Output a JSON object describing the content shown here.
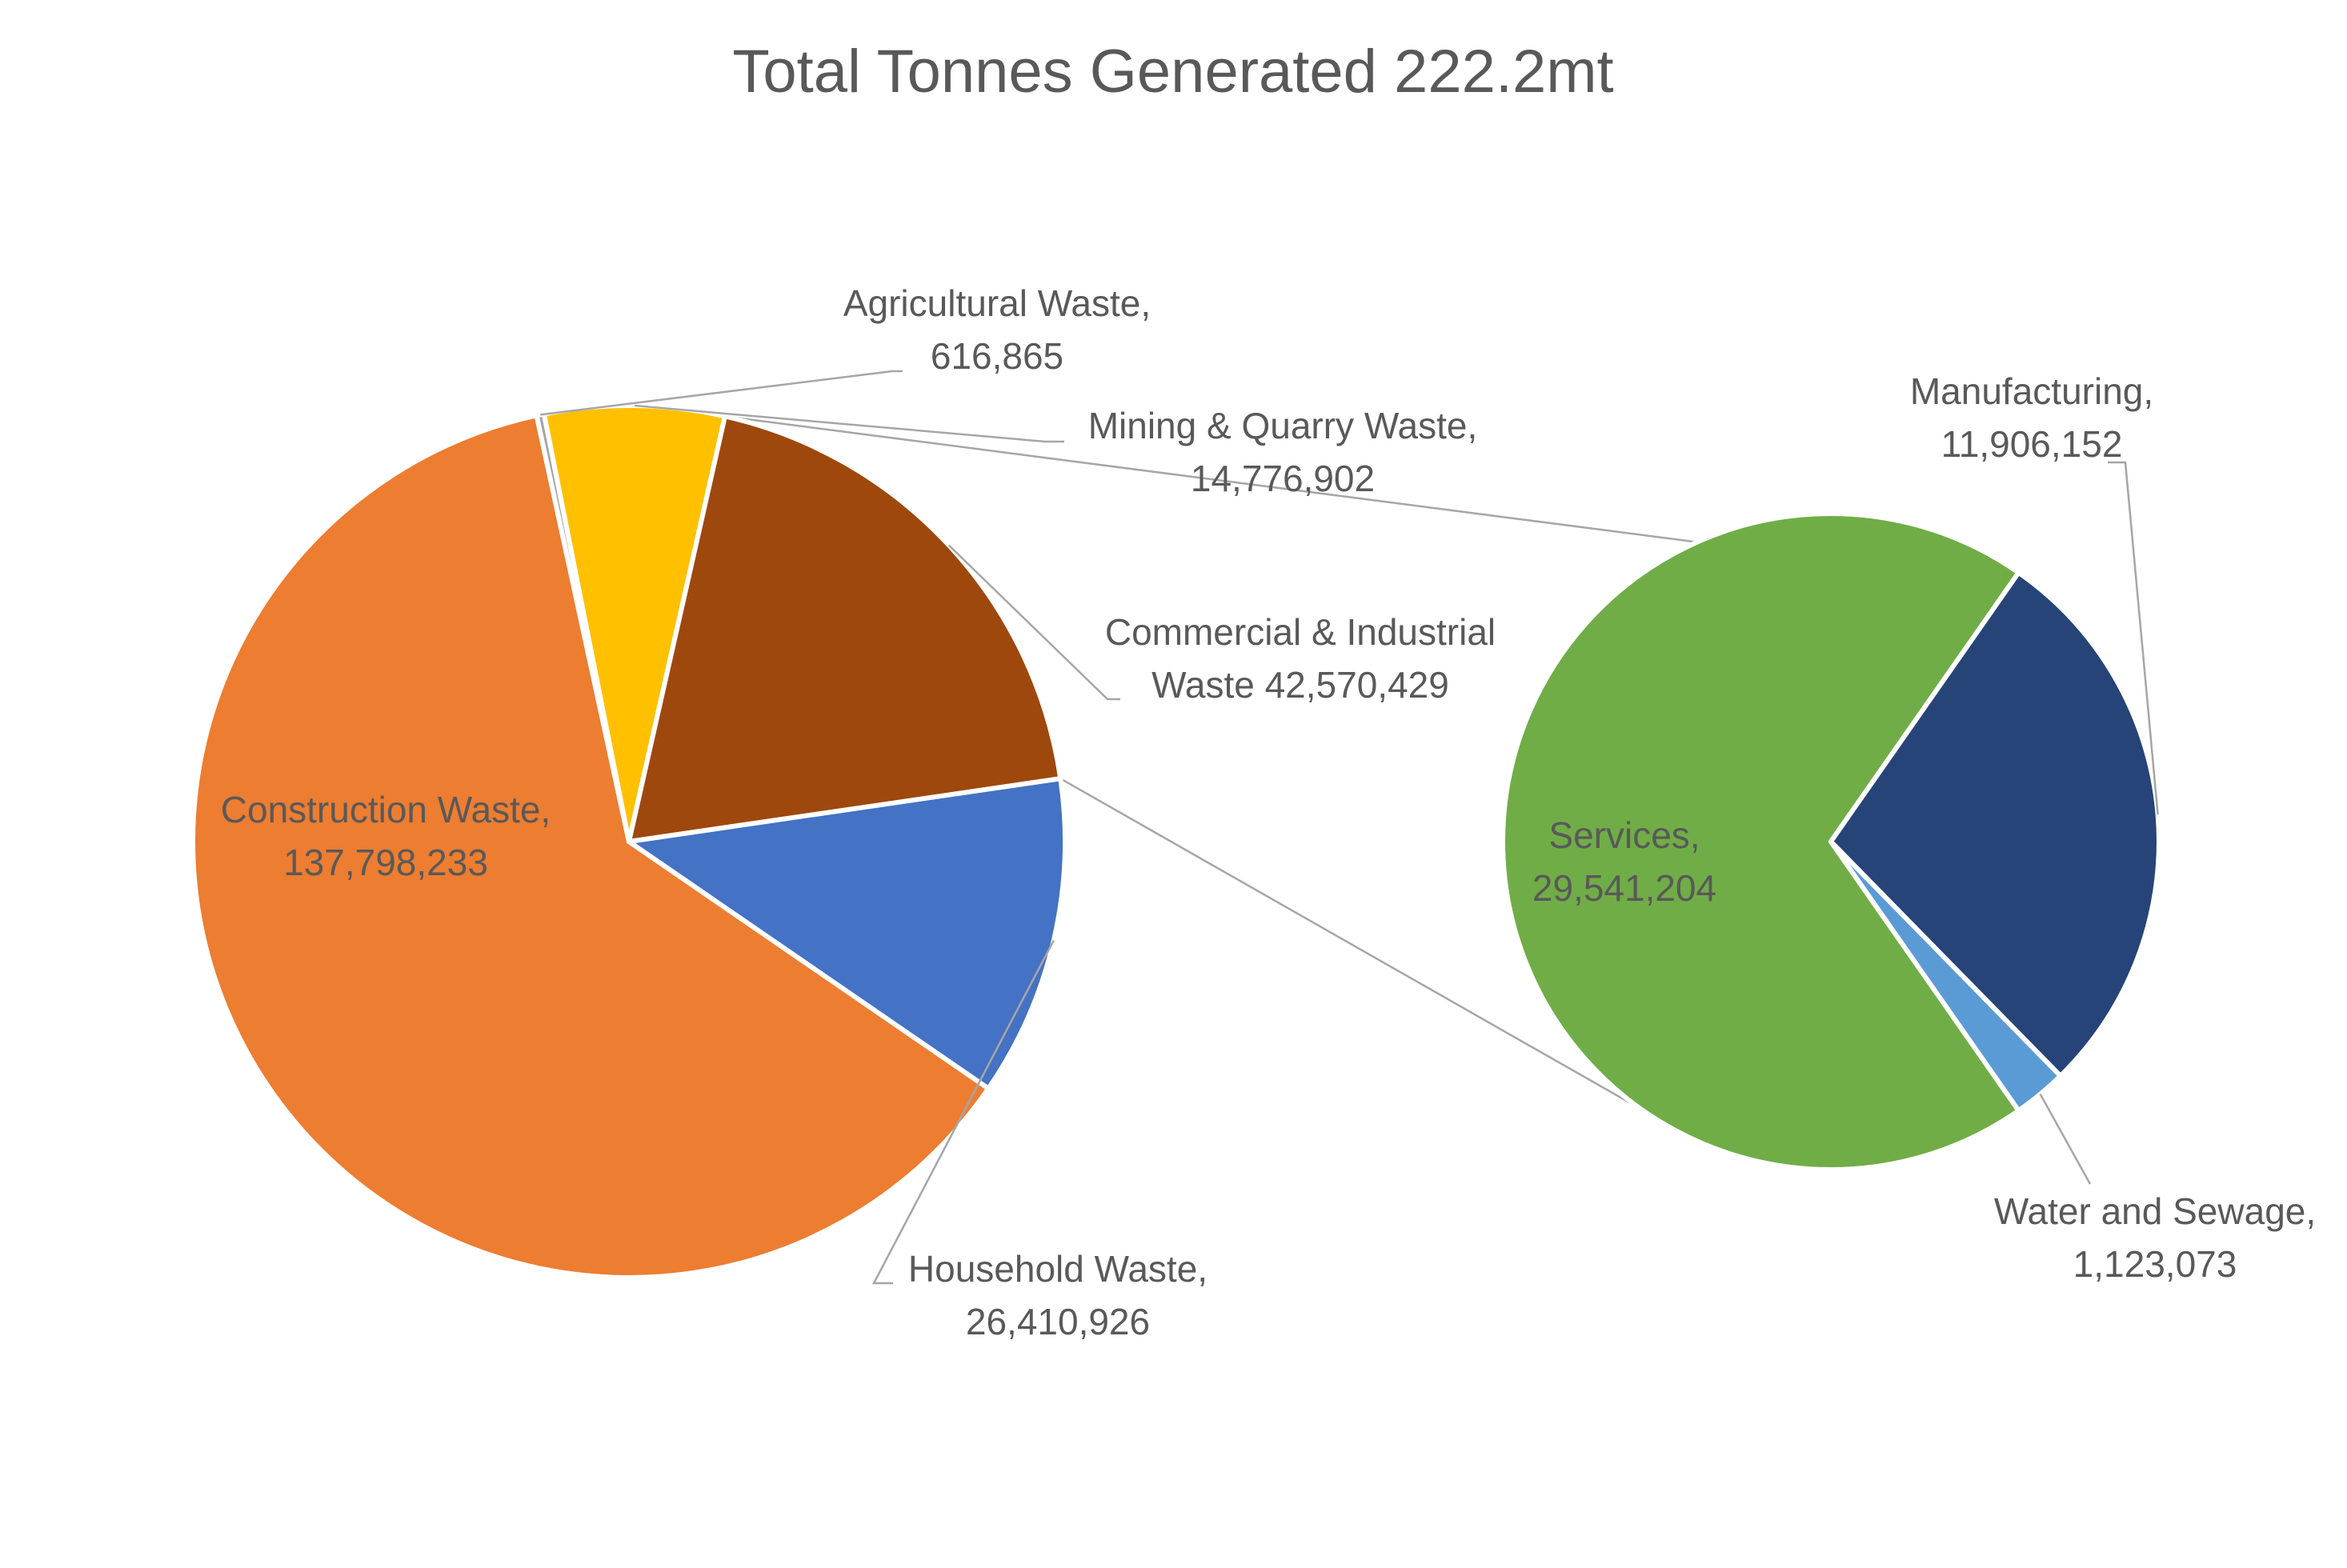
{
  "chart_data": {
    "type": "pie",
    "subtype": "pie-of-pie",
    "title": "Total Tonnes Generated 222.2mt",
    "main_pie": {
      "slices": [
        {
          "name": "Construction Waste",
          "value": 137798233,
          "line1": "Construction Waste,",
          "line2": "137,798,233",
          "color": "#ED7D31"
        },
        {
          "name": "Agricultural Waste",
          "value": 616865,
          "line1": "Agricultural Waste,",
          "line2": "616,865",
          "color": "#A5A5A5"
        },
        {
          "name": "Mining & Quarry Waste",
          "value": 14776902,
          "line1": "Mining & Quarry Waste,",
          "line2": "14,776,902",
          "color": "#FFC000"
        },
        {
          "name": "Commercial & Industrial Waste",
          "value": 42570429,
          "line1": "Commercial & Industrial",
          "line2": "Waste  42,570,429",
          "color": "#9E480E",
          "exploded_into_secondary": true
        },
        {
          "name": "Household Waste",
          "value": 26410926,
          "line1": "Household Waste,",
          "line2": "26,410,926",
          "color": "#4472C4"
        }
      ]
    },
    "secondary_pie": {
      "parent": "Commercial & Industrial Waste",
      "slices": [
        {
          "name": "Services",
          "value": 29541204,
          "line1": "Services,",
          "line2": "29,541,204",
          "color": "#70AD47"
        },
        {
          "name": "Manufacturing",
          "value": 11906152,
          "line1": "Manufacturing,",
          "line2": "11,906,152",
          "color": "#264478"
        },
        {
          "name": "Water and Sewage",
          "value": 1123073,
          "line1": "Water and Sewage,",
          "line2": "1,123,073",
          "color": "#5B9BD5"
        }
      ]
    },
    "legend": "none",
    "labels": "data labels with category name and value"
  }
}
